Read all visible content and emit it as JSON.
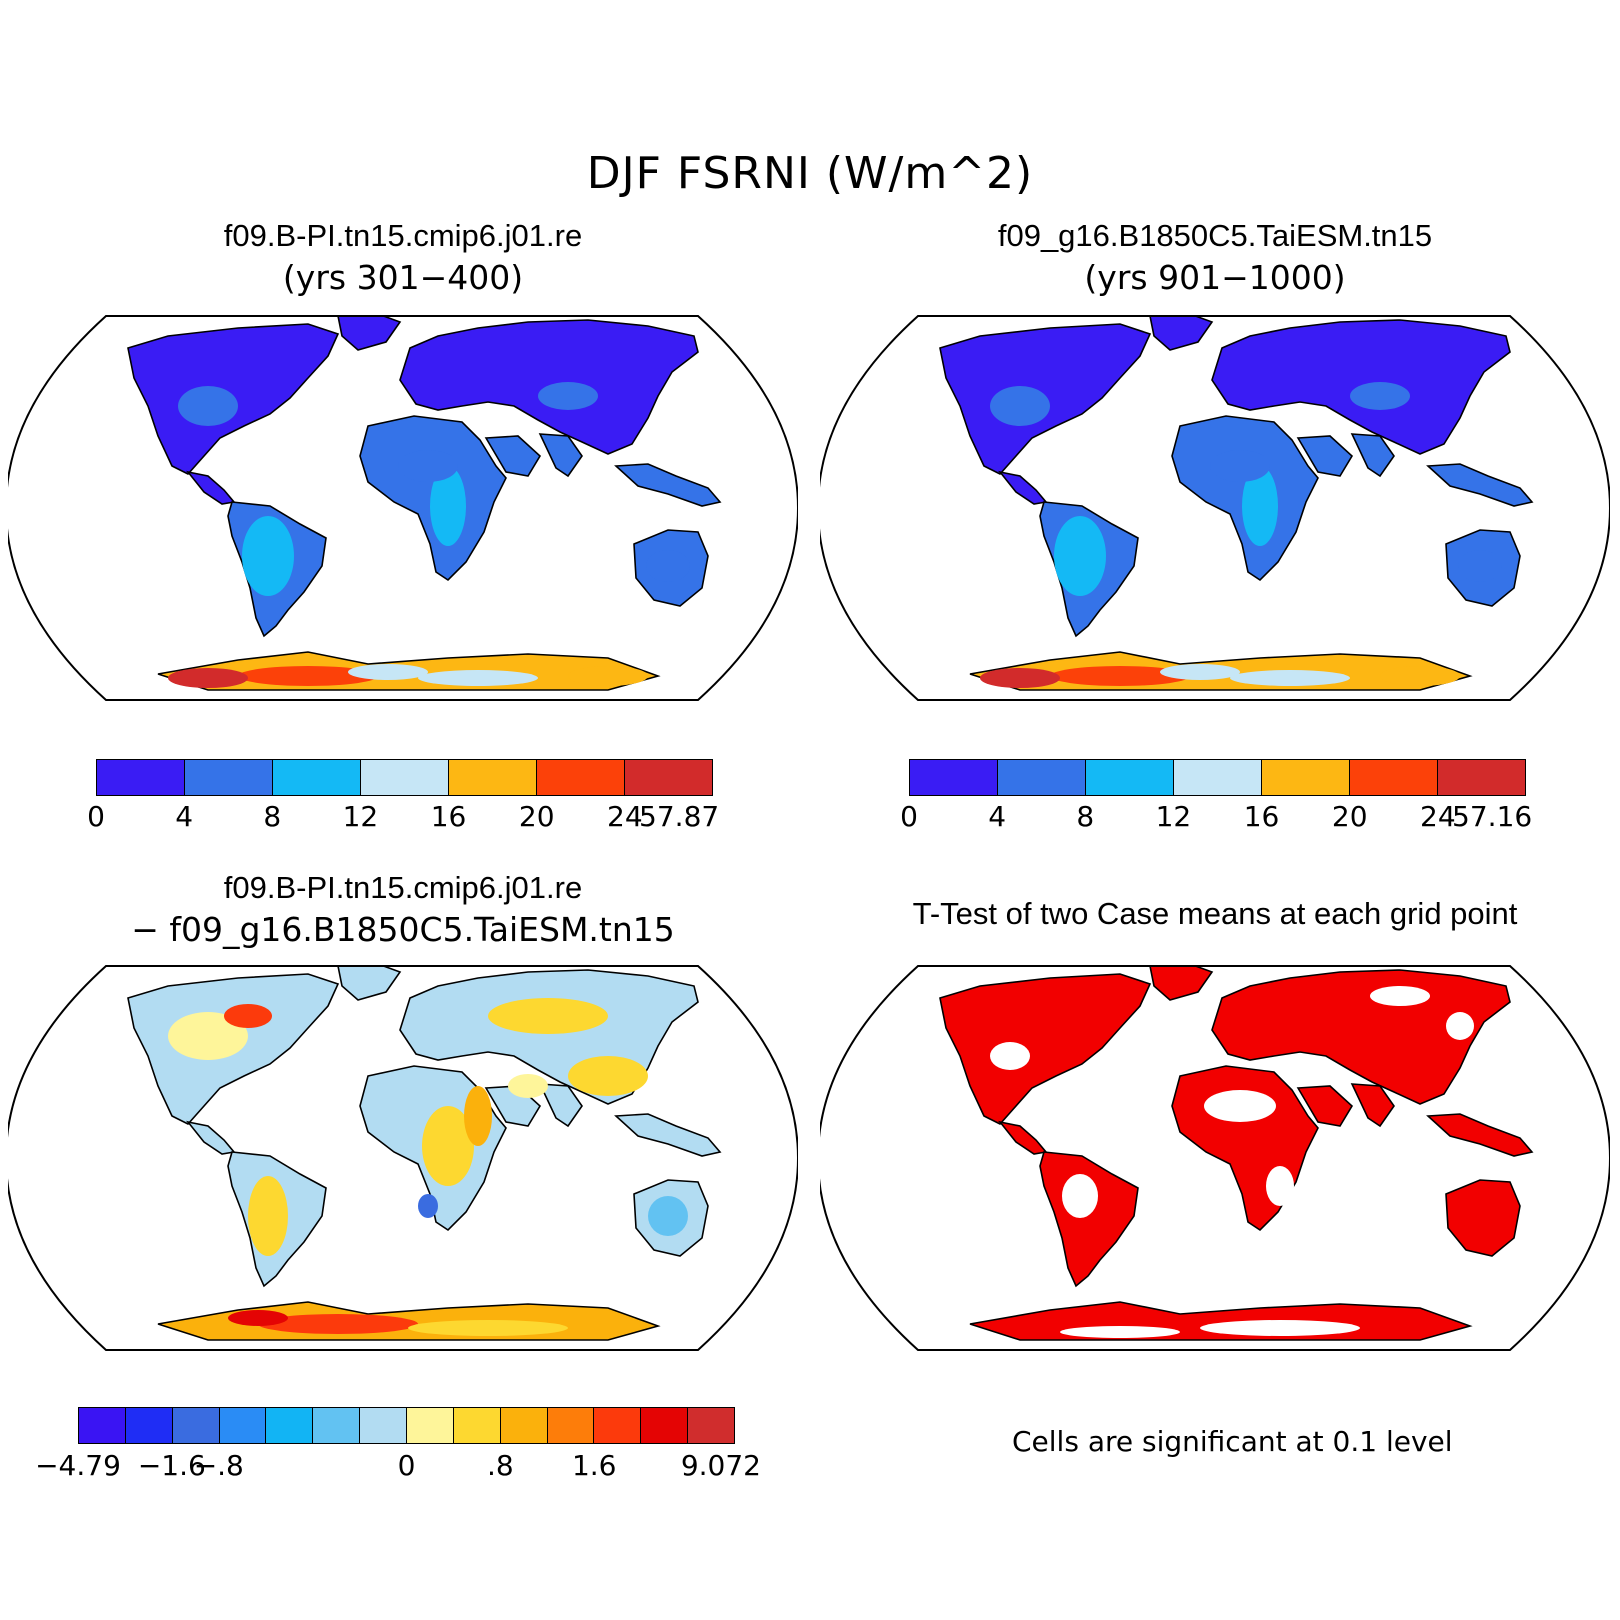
{
  "title": "DJF FSRNI (W/m^2)",
  "panels": {
    "top_left": {
      "title": "f09.B-PI.tn15.cmip6.j01.re",
      "subtitle": "(yrs 301−400)",
      "colorbar": {
        "colors": [
          "#3a1cf4",
          "#3573e8",
          "#14b9f5",
          "#c6e6f6",
          "#fdb713",
          "#fc4109",
          "#d22b2b"
        ],
        "labels": [
          "0",
          "4",
          "8",
          "12",
          "16",
          "20",
          "24",
          "57.87"
        ]
      }
    },
    "top_right": {
      "title": "f09_g16.B1850C5.TaiESM.tn15",
      "subtitle": "(yrs 901−1000)",
      "colorbar": {
        "colors": [
          "#3a1cf4",
          "#3573e8",
          "#14b9f5",
          "#c6e6f6",
          "#fdb713",
          "#fc4109",
          "#d22b2b"
        ],
        "labels": [
          "0",
          "4",
          "8",
          "12",
          "16",
          "20",
          "24",
          "57.16"
        ]
      }
    },
    "bottom_left": {
      "title": "f09.B-PI.tn15.cmip6.j01.re",
      "subtitle": "− f09_g16.B1850C5.TaiESM.tn15",
      "colorbar": {
        "colors": [
          "#3a14f3",
          "#1f2df5",
          "#3a6ce0",
          "#2a8cf5",
          "#12b4f4",
          "#62c2f2",
          "#b2dcf2",
          "#fef59a",
          "#fdd830",
          "#fbb10c",
          "#fd7d0a",
          "#fc3a0c",
          "#e40404",
          "#d02d2d"
        ],
        "labels": [
          "−4.79",
          "−1.6",
          "−.8",
          "0",
          ".8",
          "1.6",
          "9.072"
        ]
      }
    },
    "bottom_right": {
      "title": "T-Test of two Case means at each grid point",
      "note": "Cells are significant at 0.1 level",
      "significant_color": "#f20000"
    }
  }
}
